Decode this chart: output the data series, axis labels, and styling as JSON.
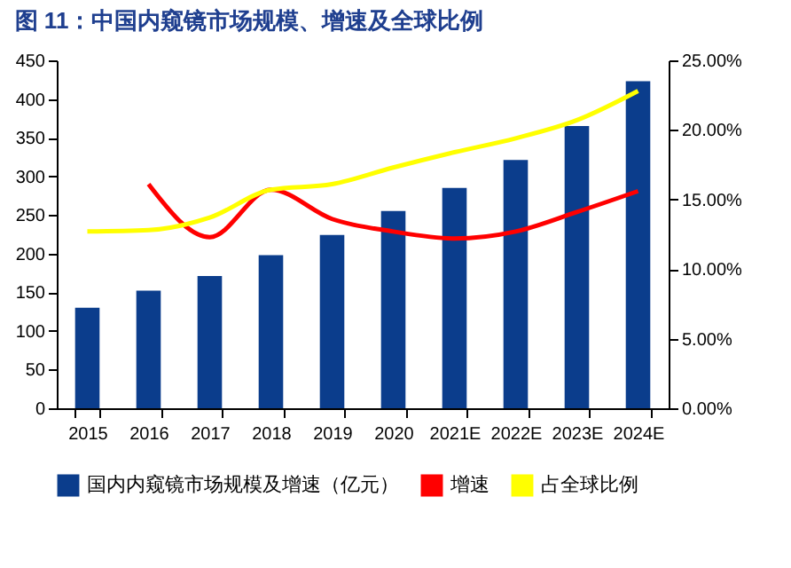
{
  "chart_data": {
    "type": "bar",
    "title": "图 11：中国内窥镜市场规模、增速及全球比例",
    "categories": [
      "2015",
      "2016",
      "2017",
      "2018",
      "2019",
      "2020",
      "2021E",
      "2022E",
      "2023E",
      "2024E"
    ],
    "series": [
      {
        "name": "国内内窥镜市场规模及增速（亿元）",
        "color": "#0b3d8c",
        "values": [
          130,
          152,
          171,
          198,
          224,
          255,
          285,
          321,
          365,
          423
        ]
      },
      {
        "name": "增速",
        "type": "line",
        "axis": "y2",
        "color": "#ff0000",
        "values": [
          null,
          16.1,
          12.3,
          15.7,
          13.6,
          12.7,
          12.2,
          12.7,
          14.1,
          15.6
        ]
      },
      {
        "name": "占全球比例",
        "type": "line",
        "axis": "y2",
        "color": "#ffff00",
        "values": [
          12.7,
          12.8,
          13.7,
          15.7,
          16.1,
          17.3,
          18.4,
          19.4,
          20.7,
          22.8
        ]
      }
    ],
    "ylim": [
      0,
      450
    ],
    "yticks": [
      0,
      50,
      100,
      150,
      200,
      250,
      300,
      350,
      400,
      450
    ],
    "y2lim": [
      0,
      25
    ],
    "y2ticks": [
      {
        "value": 0,
        "label": "0.00%"
      },
      {
        "value": 5,
        "label": "5.00%"
      },
      {
        "value": 10,
        "label": "10.00%"
      },
      {
        "value": 15,
        "label": "15.00%"
      },
      {
        "value": 20,
        "label": "20.00%"
      },
      {
        "value": 25,
        "label": "25.00%"
      }
    ],
    "legend": "bottom"
  }
}
